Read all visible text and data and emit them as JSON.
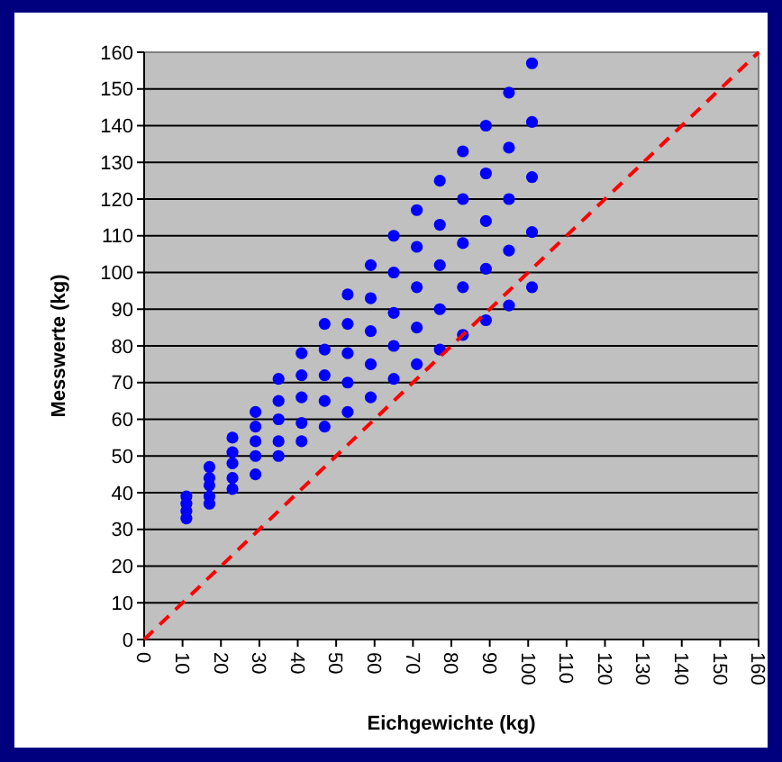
{
  "chart_data": {
    "type": "scatter",
    "xlabel": "Eichgewichte (kg)",
    "ylabel": "Messwerte (kg)",
    "xlim": [
      0,
      160
    ],
    "ylim": [
      0,
      160
    ],
    "xticks": [
      0,
      10,
      20,
      30,
      40,
      50,
      60,
      70,
      80,
      90,
      100,
      110,
      120,
      130,
      140,
      150,
      160
    ],
    "yticks": [
      0,
      10,
      20,
      30,
      40,
      50,
      60,
      70,
      80,
      90,
      100,
      110,
      120,
      130,
      140,
      150,
      160
    ],
    "grid": "y",
    "marker": "circle",
    "series": [
      {
        "color": "#0000ff",
        "x": [
          11,
          11,
          11,
          11,
          17,
          17,
          17,
          17,
          17,
          23,
          23,
          23,
          23,
          23,
          29,
          29,
          29,
          29,
          29,
          35,
          35,
          35,
          35,
          35,
          41,
          41,
          41,
          41,
          41,
          47,
          47,
          47,
          47,
          47,
          53,
          53,
          53,
          53,
          53,
          59,
          59,
          59,
          59,
          59,
          65,
          65,
          65,
          65,
          65,
          71,
          71,
          71,
          71,
          71,
          77,
          77,
          77,
          77,
          77,
          83,
          83,
          83,
          83,
          83,
          89,
          89,
          89,
          89,
          89,
          95,
          95,
          95,
          95,
          95,
          101,
          101,
          101,
          101,
          101
        ],
        "values": [
          33,
          35,
          37,
          39,
          37,
          39,
          42,
          44,
          47,
          41,
          44,
          48,
          51,
          55,
          45,
          50,
          54,
          58,
          62,
          50,
          54,
          60,
          65,
          71,
          54,
          59,
          66,
          72,
          78,
          58,
          65,
          72,
          79,
          86,
          62,
          70,
          78,
          86,
          94,
          66,
          75,
          84,
          93,
          102,
          71,
          80,
          89,
          100,
          110,
          75,
          85,
          96,
          107,
          117,
          79,
          90,
          102,
          113,
          125,
          83,
          96,
          108,
          120,
          133,
          87,
          101,
          114,
          127,
          140,
          91,
          106,
          120,
          134,
          149,
          96,
          111,
          126,
          141,
          157
        ]
      },
      {
        "type": "line",
        "color": "#ff0000",
        "line_style": "dashed",
        "marker": "none",
        "x": [
          0,
          160
        ],
        "values": [
          0,
          160
        ]
      }
    ]
  }
}
